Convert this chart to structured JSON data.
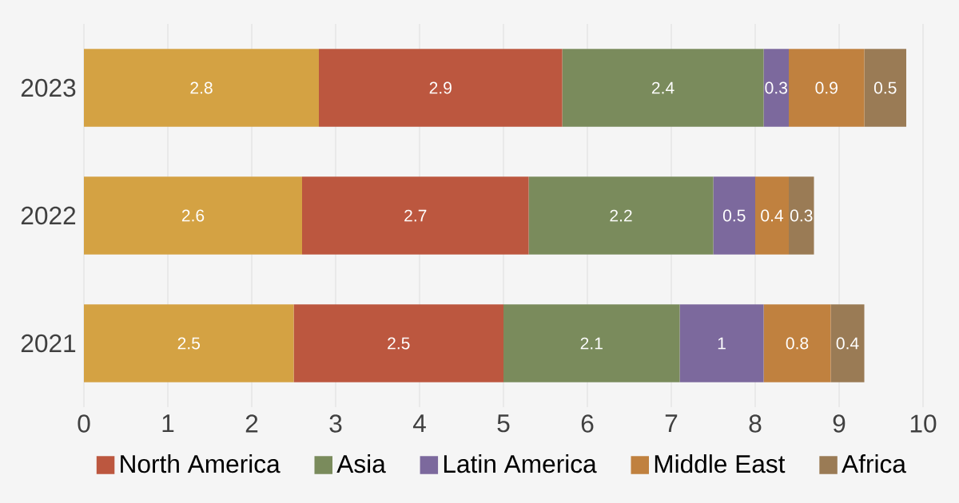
{
  "chart_data": {
    "type": "bar",
    "orientation": "horizontal",
    "stacked": true,
    "categories": [
      "2023",
      "2022",
      "2021"
    ],
    "series": [
      {
        "color": "#d4a243",
        "values": [
          2.8,
          2.6,
          2.5
        ]
      },
      {
        "name": "North America",
        "color": "#bc573f",
        "values": [
          2.9,
          2.7,
          2.5
        ]
      },
      {
        "name": "Asia",
        "color": "#7a8b5c",
        "values": [
          2.4,
          2.2,
          2.1
        ]
      },
      {
        "name": "Latin America",
        "color": "#7c699d",
        "values": [
          0.3,
          0.5,
          1
        ]
      },
      {
        "name": "Middle East",
        "color": "#c0813f",
        "values": [
          0.9,
          0.4,
          0.8
        ]
      },
      {
        "name": "Africa",
        "color": "#9a7b55",
        "values": [
          0.5,
          0.3,
          0.4
        ]
      }
    ],
    "xlim": [
      0,
      10
    ],
    "xticks": [
      0,
      1,
      2,
      3,
      4,
      5,
      6,
      7,
      8,
      9,
      10
    ],
    "grid": "x",
    "legend": "bottom",
    "data_labels": true
  }
}
